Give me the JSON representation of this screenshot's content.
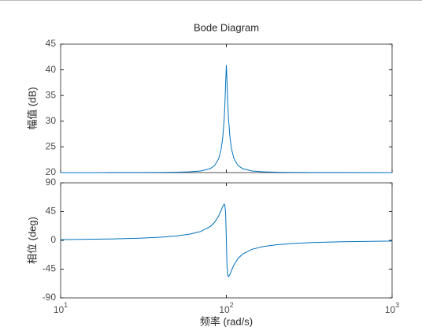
{
  "chart_data": [
    {
      "type": "line",
      "title": "Bode Diagram",
      "ylabel": "幅值 (dB)",
      "x": [
        10,
        20,
        30,
        40,
        50,
        60,
        70,
        80,
        85,
        90,
        93,
        95,
        97,
        98,
        99,
        100,
        101,
        102,
        103.1,
        105.3,
        107.5,
        111.1,
        117.6,
        125,
        142.9,
        166.7,
        200,
        250,
        333.3,
        500,
        1000
      ],
      "series": [
        {
          "name": "magnitude",
          "color": "#0072bd",
          "values": [
            20.0,
            20.01,
            20.02,
            20.04,
            20.08,
            20.15,
            20.31,
            20.78,
            21.37,
            22.75,
            24.55,
            26.68,
            30.35,
            33.28,
            37.44,
            40.92,
            37.44,
            33.28,
            30.35,
            26.68,
            24.55,
            22.75,
            21.37,
            20.78,
            20.31,
            20.15,
            20.08,
            20.04,
            20.02,
            20.01,
            20.0
          ]
        }
      ],
      "xlog": true,
      "xlim": [
        10,
        1000
      ],
      "xticks": [
        10,
        100,
        1000
      ],
      "xticklabels": false,
      "ylim": [
        20,
        45
      ],
      "yticks": [
        20,
        25,
        30,
        35,
        40,
        45
      ]
    },
    {
      "type": "line",
      "ylabel": "相位 (deg)",
      "xlabel": "频率  (rad/s)",
      "x": [
        10,
        20,
        30,
        40,
        50,
        60,
        70,
        80,
        85,
        90,
        93,
        95,
        97,
        98,
        99,
        100,
        101,
        102,
        103.1,
        105.3,
        107.5,
        111.1,
        117.6,
        125,
        142.9,
        166.7,
        200,
        250,
        333.3,
        500,
        1000
      ],
      "series": [
        {
          "name": "phase",
          "color": "#0072bd",
          "values": [
            1.05,
            2.17,
            3.43,
            4.95,
            6.9,
            9.65,
            13.93,
            21.67,
            28.33,
            38.58,
            46.9,
            52.9,
            56.6,
            54.6,
            42.4,
            0,
            -42.4,
            -54.6,
            -56.6,
            -52.9,
            -46.9,
            -38.58,
            -28.33,
            -21.67,
            -13.93,
            -9.65,
            -6.9,
            -4.95,
            -3.43,
            -2.17,
            -1.05
          ]
        }
      ],
      "xlog": true,
      "xlim": [
        10,
        1000
      ],
      "xticks": [
        {
          "value": 10,
          "label": "10",
          "exponent": "1"
        },
        {
          "value": 100,
          "label": "10",
          "exponent": "2"
        },
        {
          "value": 1000,
          "label": "10",
          "exponent": "3"
        }
      ],
      "ylim": [
        -90,
        90
      ],
      "yticks": [
        -90,
        -45,
        0,
        45,
        90
      ]
    }
  ]
}
